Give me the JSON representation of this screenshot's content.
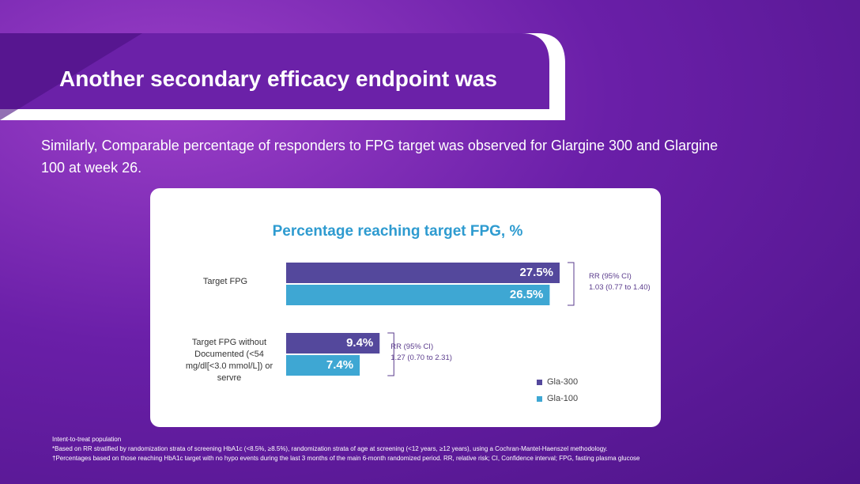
{
  "header": {
    "title": "Another secondary efficacy endpoint was"
  },
  "subtitle": "Similarly, Comparable percentage of responders to FPG target was observed for Glargine 300 and Glargine 100 at week 26.",
  "chart_data": {
    "type": "bar",
    "orientation": "horizontal",
    "title": "Percentage reaching target FPG, %",
    "categories": [
      "Target FPG",
      "Target FPG without Documented (<54 mg/dl[<3.0 mmol/L]) or servre"
    ],
    "series": [
      {
        "name": "Gla-300",
        "color": "#54489c",
        "values": [
          27.5,
          9.4
        ],
        "value_labels": [
          "27.5%",
          "9.4%"
        ]
      },
      {
        "name": "Gla-100",
        "color": "#3ea7d3",
        "values": [
          26.5,
          7.4
        ],
        "value_labels": [
          "26.5%",
          "7.4%"
        ]
      }
    ],
    "annotations": [
      {
        "label": "RR (95% CI)",
        "text": "1.03 (0.77 to 1.40)"
      },
      {
        "label": "RR (95% CI)",
        "text": "1.27 (0.70 to 2.31)"
      }
    ]
  },
  "footnotes": [
    "Intent-to-treat population",
    "*Based on RR stratified by randomization strata of screening HbA1c (<8.5%, ≥8.5%), randomization strata of age at screening (<12 years, ≥12 years), using a Cochran-Mantel-Haenszel methodology.",
    "†Percentages based on those reaching HbA1c target with no hypo events during the last 3 months of the main 6-month randomized period. RR, relative risk; CI, Confidence interval; FPG, fasting plasma glucose"
  ]
}
